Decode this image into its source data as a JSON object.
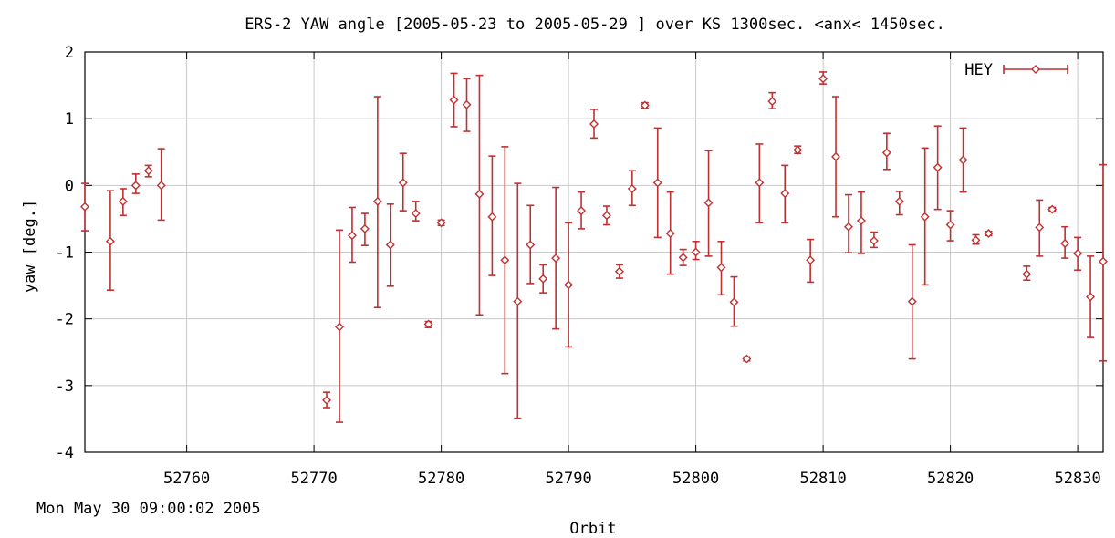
{
  "timestamp": "Mon May 30 09:00:02 2005",
  "chart_data": {
    "type": "scatter",
    "title": "ERS-2 YAW angle [2005-05-23 to 2005-05-29 ] over KS 1300sec. <anx< 1450sec.",
    "xlabel": "Orbit",
    "ylabel": "yaw [deg.]",
    "xlim": [
      52752,
      52832
    ],
    "ylim": [
      -4,
      2
    ],
    "xticks": [
      52760,
      52770,
      52780,
      52790,
      52800,
      52810,
      52820,
      52830
    ],
    "yticks": [
      -4,
      -3,
      -2,
      -1,
      0,
      1,
      2
    ],
    "grid": true,
    "legend_position": "top-right",
    "colors": {
      "series": "#c03030",
      "grid": "#c8c8c8",
      "axes": "#000000"
    },
    "series": [
      {
        "name": "HEY",
        "points": [
          {
            "x": 52752,
            "y": -0.32,
            "lo": -0.68,
            "hi": 0.03
          },
          {
            "x": 52754,
            "y": -0.84,
            "lo": -1.57,
            "hi": -0.08
          },
          {
            "x": 52755,
            "y": -0.24,
            "lo": -0.45,
            "hi": -0.05
          },
          {
            "x": 52756,
            "y": 0.0,
            "lo": -0.12,
            "hi": 0.17
          },
          {
            "x": 52757,
            "y": 0.22,
            "lo": 0.13,
            "hi": 0.3
          },
          {
            "x": 52758,
            "y": 0.0,
            "lo": -0.52,
            "hi": 0.55
          },
          {
            "x": 52771,
            "y": -3.22,
            "lo": -3.33,
            "hi": -3.1
          },
          {
            "x": 52772,
            "y": -2.12,
            "lo": -3.55,
            "hi": -0.67
          },
          {
            "x": 52773,
            "y": -0.75,
            "lo": -1.15,
            "hi": -0.33
          },
          {
            "x": 52774,
            "y": -0.65,
            "lo": -0.9,
            "hi": -0.42
          },
          {
            "x": 52775,
            "y": -0.24,
            "lo": -1.83,
            "hi": 1.33
          },
          {
            "x": 52776,
            "y": -0.89,
            "lo": -1.51,
            "hi": -0.28
          },
          {
            "x": 52777,
            "y": 0.04,
            "lo": -0.38,
            "hi": 0.48
          },
          {
            "x": 52778,
            "y": -0.42,
            "lo": -0.53,
            "hi": -0.24
          },
          {
            "x": 52779,
            "y": -2.08,
            "lo": -2.13,
            "hi": -2.04
          },
          {
            "x": 52780,
            "y": -0.56,
            "lo": -0.6,
            "hi": -0.52
          },
          {
            "x": 52781,
            "y": 1.28,
            "lo": 0.88,
            "hi": 1.68
          },
          {
            "x": 52782,
            "y": 1.21,
            "lo": 0.81,
            "hi": 1.6
          },
          {
            "x": 52783,
            "y": -0.13,
            "lo": -1.94,
            "hi": 1.65
          },
          {
            "x": 52784,
            "y": -0.47,
            "lo": -1.35,
            "hi": 0.44
          },
          {
            "x": 52785,
            "y": -1.12,
            "lo": -2.82,
            "hi": 0.58
          },
          {
            "x": 52786,
            "y": -1.74,
            "lo": -3.49,
            "hi": 0.03
          },
          {
            "x": 52787,
            "y": -0.89,
            "lo": -1.47,
            "hi": -0.3
          },
          {
            "x": 52788,
            "y": -1.4,
            "lo": -1.61,
            "hi": -1.19
          },
          {
            "x": 52789,
            "y": -1.09,
            "lo": -2.15,
            "hi": -0.03
          },
          {
            "x": 52790,
            "y": -1.49,
            "lo": -2.42,
            "hi": -0.56
          },
          {
            "x": 52791,
            "y": -0.38,
            "lo": -0.65,
            "hi": -0.1
          },
          {
            "x": 52792,
            "y": 0.92,
            "lo": 0.71,
            "hi": 1.14
          },
          {
            "x": 52793,
            "y": -0.45,
            "lo": -0.59,
            "hi": -0.31
          },
          {
            "x": 52794,
            "y": -1.29,
            "lo": -1.39,
            "hi": -1.19
          },
          {
            "x": 52795,
            "y": -0.05,
            "lo": -0.3,
            "hi": 0.22
          },
          {
            "x": 52796,
            "y": 1.2,
            "lo": 1.16,
            "hi": 1.24
          },
          {
            "x": 52797,
            "y": 0.04,
            "lo": -0.78,
            "hi": 0.86
          },
          {
            "x": 52798,
            "y": -0.72,
            "lo": -1.33,
            "hi": -0.1
          },
          {
            "x": 52799,
            "y": -1.08,
            "lo": -1.2,
            "hi": -0.96
          },
          {
            "x": 52800,
            "y": -1.0,
            "lo": -1.11,
            "hi": -0.84
          },
          {
            "x": 52801,
            "y": -0.26,
            "lo": -1.06,
            "hi": 0.52
          },
          {
            "x": 52802,
            "y": -1.23,
            "lo": -1.64,
            "hi": -0.84
          },
          {
            "x": 52803,
            "y": -1.75,
            "lo": -2.11,
            "hi": -1.37
          },
          {
            "x": 52804,
            "y": -2.6,
            "lo": -2.63,
            "hi": -2.57
          },
          {
            "x": 52805,
            "y": 0.04,
            "lo": -0.56,
            "hi": 0.62
          },
          {
            "x": 52806,
            "y": 1.26,
            "lo": 1.15,
            "hi": 1.39
          },
          {
            "x": 52807,
            "y": -0.12,
            "lo": -0.56,
            "hi": 0.3
          },
          {
            "x": 52808,
            "y": 0.53,
            "lo": 0.48,
            "hi": 0.59
          },
          {
            "x": 52809,
            "y": -1.12,
            "lo": -1.45,
            "hi": -0.81
          },
          {
            "x": 52810,
            "y": 1.6,
            "lo": 1.52,
            "hi": 1.7
          },
          {
            "x": 52811,
            "y": 0.43,
            "lo": -0.47,
            "hi": 1.33
          },
          {
            "x": 52812,
            "y": -0.62,
            "lo": -1.01,
            "hi": -0.14
          },
          {
            "x": 52813,
            "y": -0.53,
            "lo": -1.02,
            "hi": -0.1
          },
          {
            "x": 52814,
            "y": -0.83,
            "lo": -0.93,
            "hi": -0.7
          },
          {
            "x": 52815,
            "y": 0.49,
            "lo": 0.24,
            "hi": 0.78
          },
          {
            "x": 52816,
            "y": -0.24,
            "lo": -0.44,
            "hi": -0.09
          },
          {
            "x": 52817,
            "y": -1.74,
            "lo": -2.6,
            "hi": -0.89
          },
          {
            "x": 52818,
            "y": -0.47,
            "lo": -1.49,
            "hi": 0.56
          },
          {
            "x": 52819,
            "y": 0.27,
            "lo": -0.36,
            "hi": 0.89
          },
          {
            "x": 52820,
            "y": -0.59,
            "lo": -0.83,
            "hi": -0.38
          },
          {
            "x": 52821,
            "y": 0.38,
            "lo": -0.1,
            "hi": 0.86
          },
          {
            "x": 52822,
            "y": -0.82,
            "lo": -0.88,
            "hi": -0.74
          },
          {
            "x": 52823,
            "y": -0.72,
            "lo": -0.75,
            "hi": -0.69
          },
          {
            "x": 52826,
            "y": -1.33,
            "lo": -1.42,
            "hi": -1.21
          },
          {
            "x": 52827,
            "y": -0.63,
            "lo": -1.06,
            "hi": -0.22
          },
          {
            "x": 52828,
            "y": -0.36,
            "lo": -0.39,
            "hi": -0.33
          },
          {
            "x": 52829,
            "y": -0.87,
            "lo": -1.09,
            "hi": -0.62
          },
          {
            "x": 52830,
            "y": -1.02,
            "lo": -1.27,
            "hi": -0.78
          },
          {
            "x": 52831,
            "y": -1.67,
            "lo": -2.28,
            "hi": -1.06
          },
          {
            "x": 52832,
            "y": -1.14,
            "lo": -2.63,
            "hi": 0.31
          }
        ]
      }
    ]
  }
}
